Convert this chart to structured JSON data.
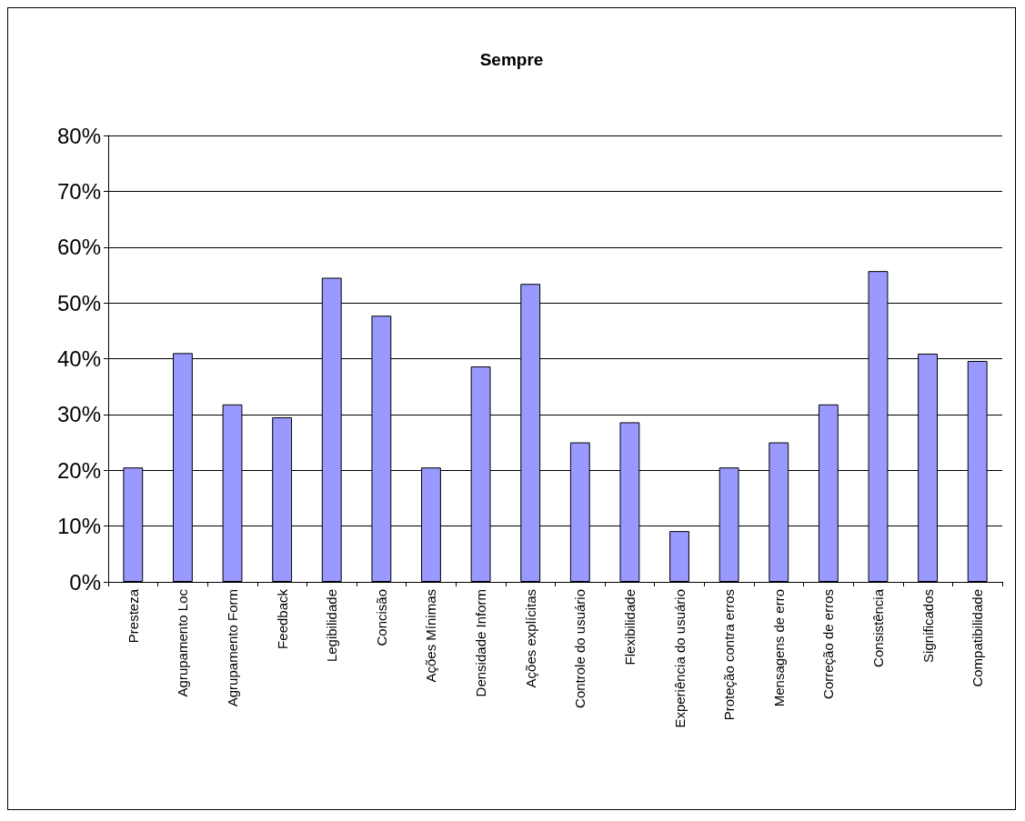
{
  "chart_data": {
    "type": "bar",
    "title": "Sempre",
    "categories": [
      "Presteza",
      "Agrupamento Loc",
      "Agrupamento Form",
      "Feedback",
      "Legibilidade",
      "Concisão",
      "Ações Mínimas",
      "Densidade Inform",
      "Ações explícitas",
      "Controle do usuário",
      "Flexibilidade",
      "Experiência do usuário",
      "Proteção contra erros",
      "Mensagens de erro",
      "Correção de erros",
      "Consistência",
      "Significados",
      "Compatibilidade"
    ],
    "values": [
      20.5,
      41,
      31.8,
      29.5,
      54.5,
      47.7,
      20.5,
      38.6,
      53.4,
      25,
      28.6,
      9.1,
      20.5,
      25,
      31.8,
      55.7,
      40.9,
      39.6
    ],
    "color": "#9999ff",
    "ylim": [
      0,
      80
    ],
    "yticks": [
      {
        "value": 0,
        "label": "0%"
      },
      {
        "value": 10,
        "label": "10%"
      },
      {
        "value": 20,
        "label": "20%"
      },
      {
        "value": 30,
        "label": "30%"
      },
      {
        "value": 40,
        "label": "40%"
      },
      {
        "value": 50,
        "label": "50%"
      },
      {
        "value": 60,
        "label": "60%"
      },
      {
        "value": 70,
        "label": "70%"
      },
      {
        "value": 80,
        "label": "80%"
      }
    ],
    "grid": "y"
  }
}
